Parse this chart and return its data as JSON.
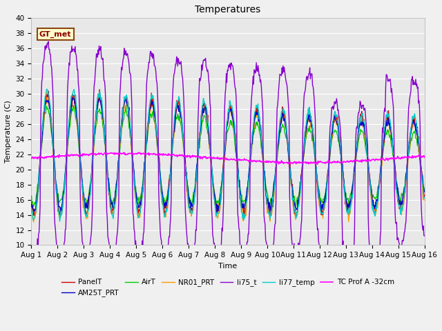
{
  "title": "Temperatures",
  "xlabel": "Time",
  "ylabel": "Temperature (C)",
  "ylim": [
    10,
    40
  ],
  "xlim_days": [
    0,
    15
  ],
  "xtick_labels": [
    "Aug 1",
    "Aug 2",
    "Aug 3",
    "Aug 4",
    "Aug 5",
    "Aug 6",
    "Aug 7",
    "Aug 8",
    "Aug 9",
    "Aug 10",
    "Aug 11",
    "Aug 12",
    "Aug 13",
    "Aug 14",
    "Aug 15",
    "Aug 16"
  ],
  "annotation_text": "GT_met",
  "series": {
    "PanelT": {
      "color": "#cc0000",
      "lw": 1.0
    },
    "AM25T_PRT": {
      "color": "#0000cc",
      "lw": 1.0
    },
    "AirT": {
      "color": "#00cc00",
      "lw": 1.0
    },
    "NR01_PRT": {
      "color": "#ff9900",
      "lw": 1.0
    },
    "li75_t": {
      "color": "#8800cc",
      "lw": 1.0
    },
    "li77_temp": {
      "color": "#00cccc",
      "lw": 1.0
    },
    "TC Prof A -32cm": {
      "color": "#ff00ff",
      "lw": 1.2
    }
  },
  "background_color": "#e8e8e8",
  "grid_color": "#ffffff",
  "fig_bg": "#f0f0f0",
  "title_fontsize": 10,
  "axis_fontsize": 8,
  "tick_fontsize": 7.5
}
